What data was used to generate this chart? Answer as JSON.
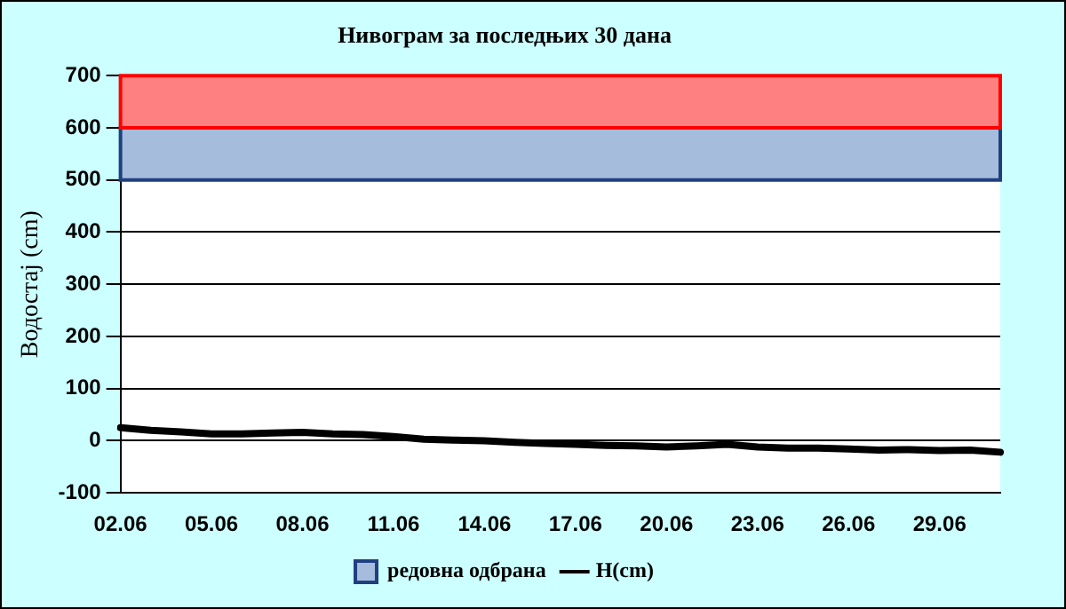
{
  "chart_data": {
    "type": "line",
    "title": "Нивограм за последњих 30 дана",
    "ylabel": "Водостај (cm)",
    "categories": [
      "02.06",
      null,
      null,
      "05.06",
      null,
      null,
      "08.06",
      null,
      null,
      "11.06",
      null,
      null,
      "14.06",
      null,
      null,
      "17.06",
      null,
      null,
      "20.06",
      null,
      null,
      "23.06",
      null,
      null,
      "26.06",
      null,
      null,
      "29.06",
      null,
      null
    ],
    "series": [
      {
        "name": "H(cm)",
        "color": "#000000",
        "values": [
          25,
          20,
          17,
          13,
          13,
          15,
          16,
          13,
          12,
          8,
          3,
          1,
          0,
          -3,
          -5,
          -7,
          -9,
          -10,
          -12,
          -10,
          -7,
          -12,
          -14,
          -14,
          -16,
          -18,
          -17,
          -19,
          -18,
          -22
        ]
      }
    ],
    "bands": [
      {
        "axis": "y",
        "from": 500,
        "to": 600,
        "label": "редовна одбрана",
        "color": "#a6bcdc"
      },
      {
        "axis": "y",
        "from": 600,
        "to": 700,
        "color": "#ff8080"
      }
    ],
    "ylim": [
      -100,
      700
    ],
    "yticks": [
      -100,
      0,
      100,
      200,
      300,
      400,
      500,
      600,
      700
    ],
    "grid": "y",
    "legend": "bottom",
    "marker": "none",
    "line_style": "solid"
  }
}
